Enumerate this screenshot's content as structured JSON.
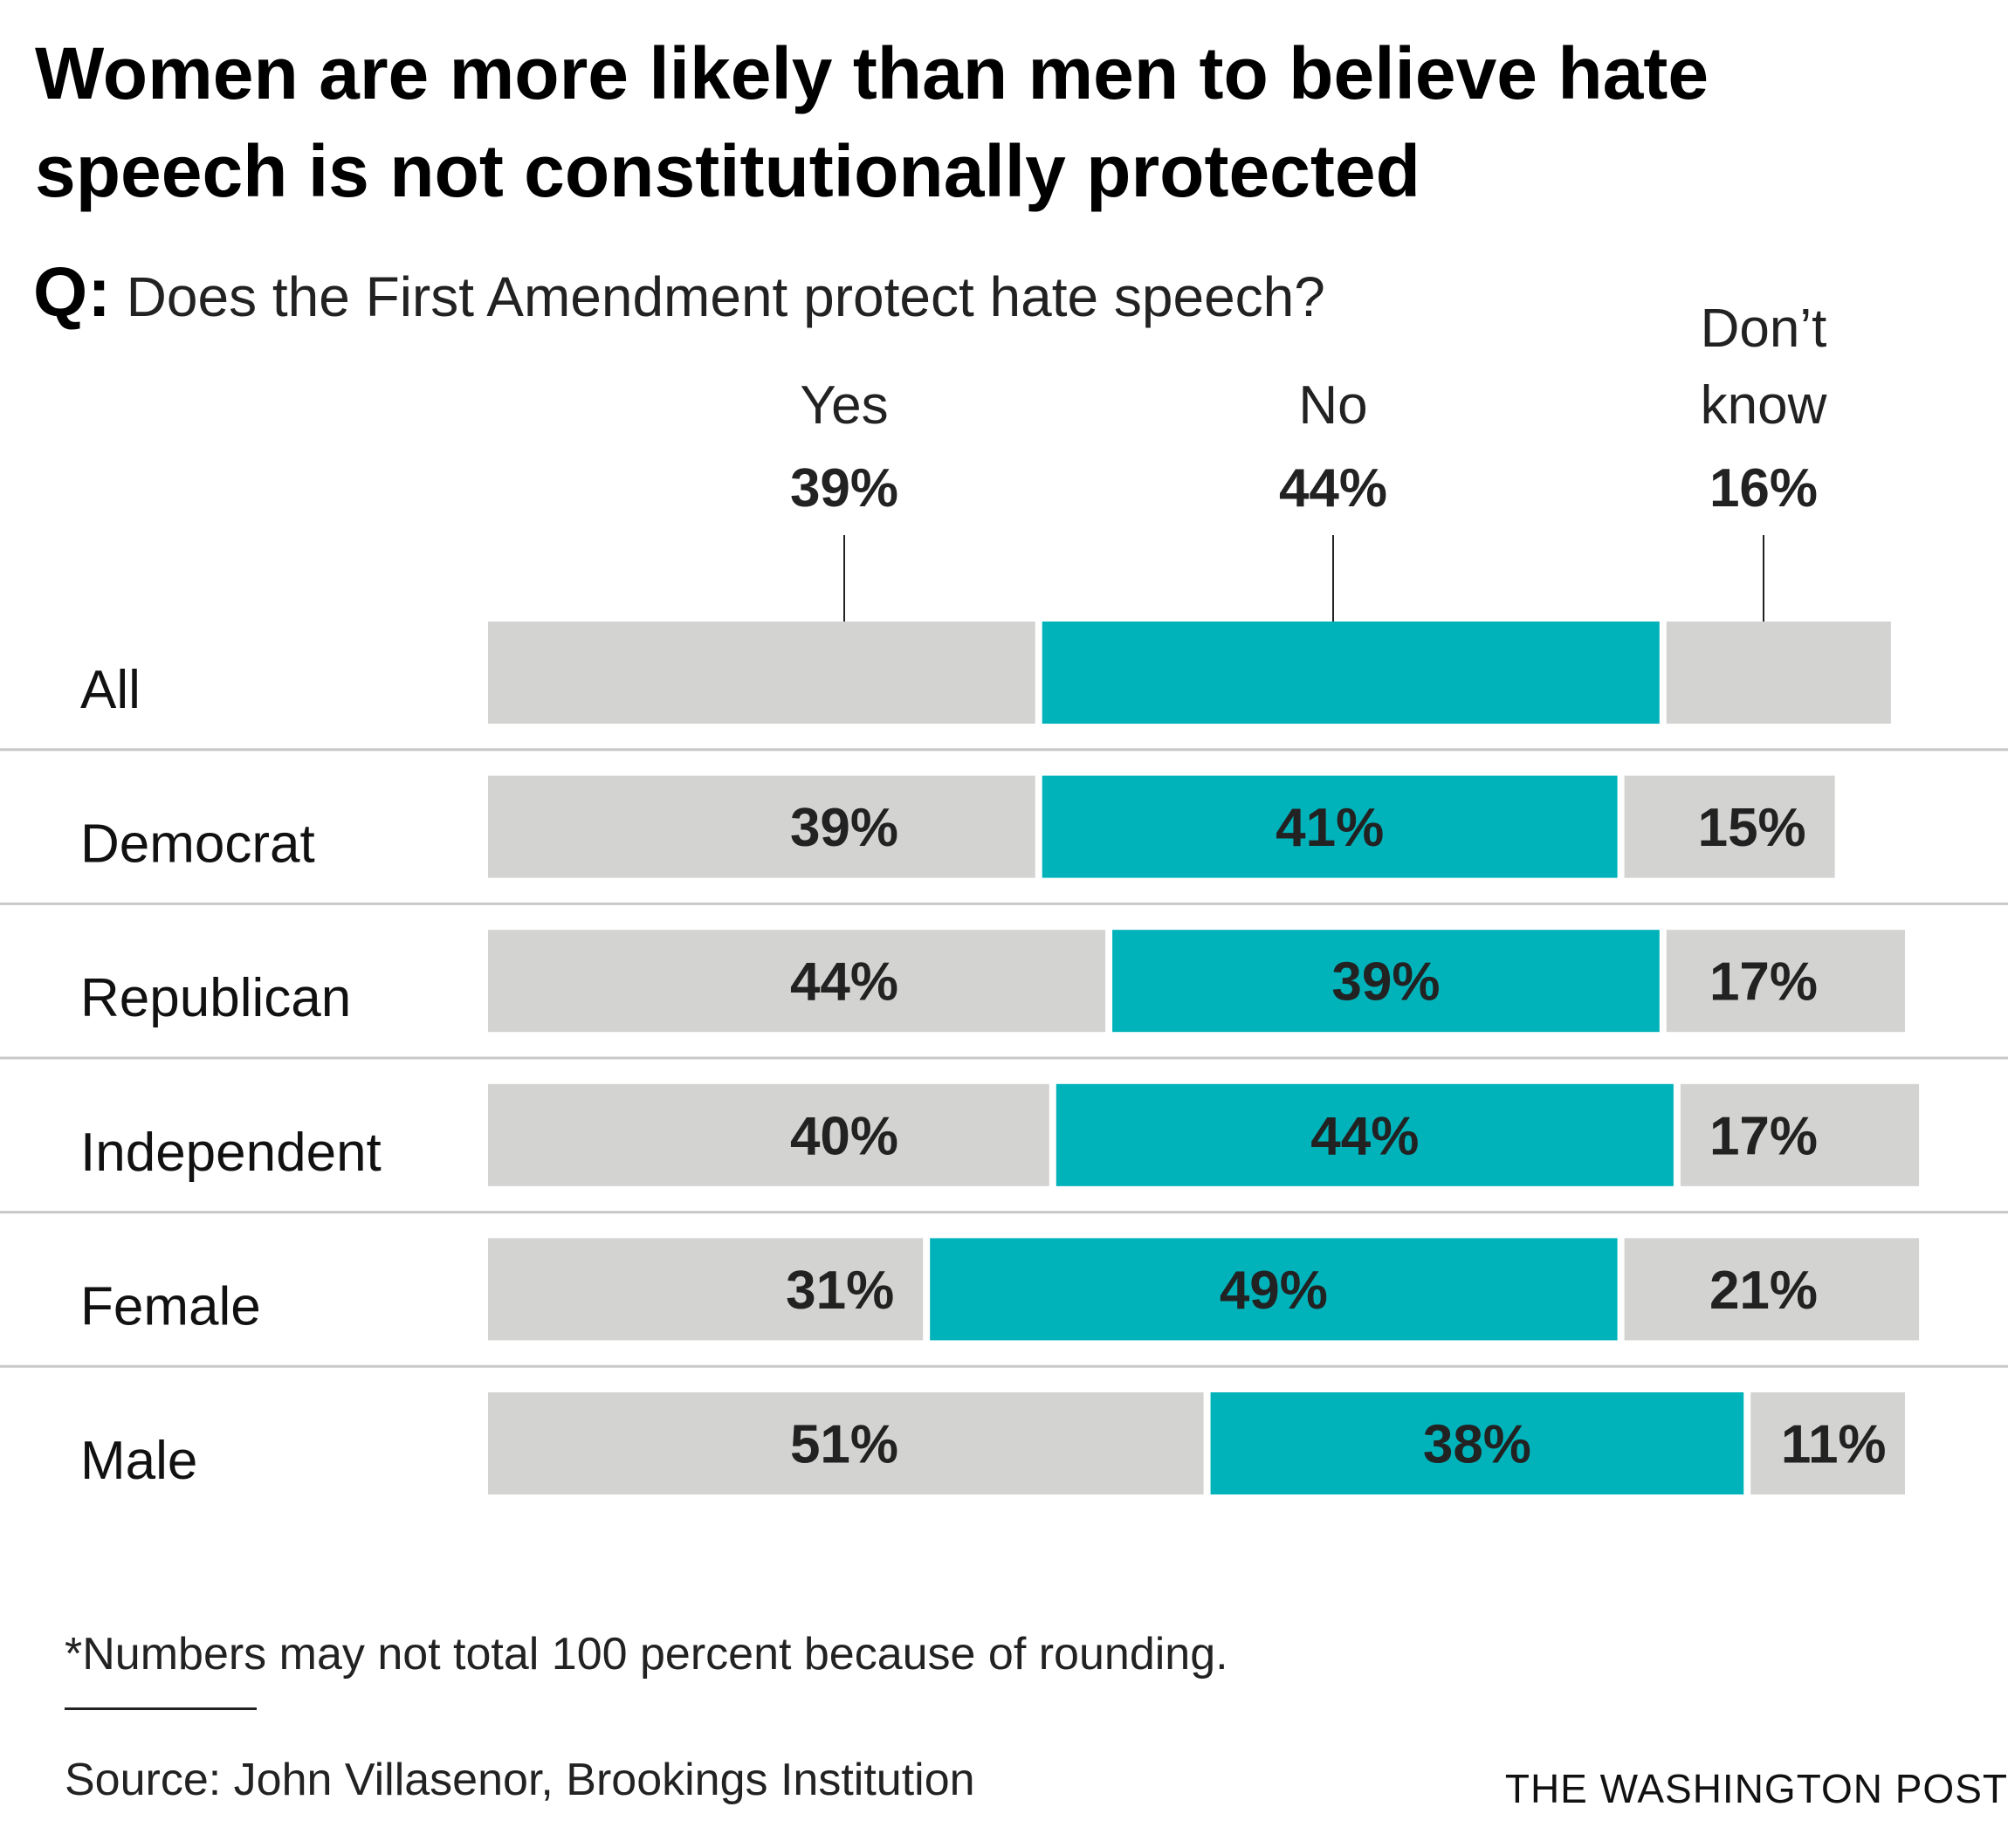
{
  "title": "Women are more likely than men to believe hate speech is not constitutionally protected",
  "question": {
    "prefix": "Q:",
    "text": "Does the First Amendment protect hate speech?"
  },
  "colors": {
    "yes": "#d3d3d1",
    "no": "#00b3ba",
    "dont_know": "#d3d3d1",
    "text": "#222222",
    "divider": "#c8c8c8"
  },
  "chart_data": {
    "type": "bar",
    "orientation": "horizontal-stacked",
    "title": "Women are more likely than men to believe hate speech is not constitutionally protected",
    "subtitle": "Q: Does the First Amendment protect hate speech?",
    "categories": [
      "All",
      "Democrat",
      "Republican",
      "Independent",
      "Female",
      "Male"
    ],
    "series": [
      {
        "name": "Yes",
        "header_lines": [
          "Yes"
        ],
        "values": [
          39,
          39,
          44,
          40,
          31,
          51
        ]
      },
      {
        "name": "No",
        "header_lines": [
          "No"
        ],
        "values": [
          44,
          41,
          39,
          44,
          49,
          38
        ]
      },
      {
        "name": "Don’t know",
        "header_lines": [
          "Don’t",
          "know"
        ],
        "values": [
          16,
          15,
          17,
          17,
          21,
          11
        ]
      }
    ],
    "value_suffix": "%",
    "xlim": [
      0,
      100
    ],
    "legend": "top, as column headers",
    "grid": false
  },
  "footnote": "*Numbers may not total 100 percent because of rounding.",
  "source": "Source: John Villasenor, Brookings Institution",
  "credit": "THE WASHINGTON POST"
}
